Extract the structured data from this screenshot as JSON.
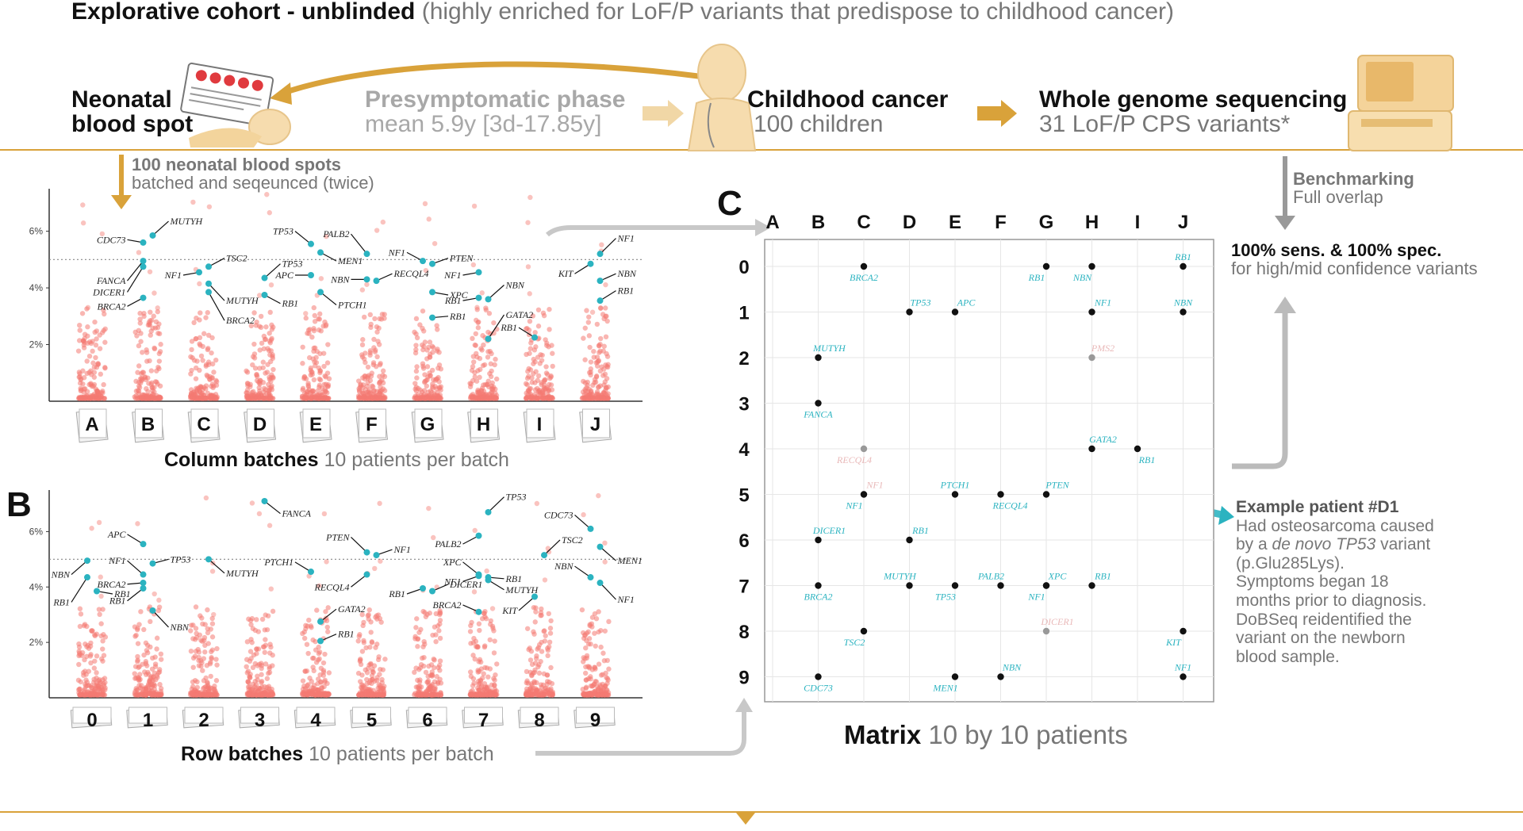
{
  "header": {
    "title_bold": "Explorative cohort - unblinded",
    "title_rest": "(highly enriched for LoF/P variants that predispose to childhood cancer)"
  },
  "stages": {
    "neonatal": {
      "line1": "Neonatal",
      "line2": "blood spot"
    },
    "presymptomatic": {
      "title": "Presymptomatic phase",
      "sub": "mean 5.9y [3d-17.85y]"
    },
    "childhood": {
      "title": "Childhood cancer",
      "sub": "100 children"
    },
    "wgs": {
      "title": "Whole genome sequencing",
      "sub": "31 LoF/P CPS variants*"
    }
  },
  "batching_note": {
    "line1": "100 neonatal blood spots",
    "line2": "batched and seqeunced (twice)"
  },
  "benchmark_note": {
    "line1": "Benchmarking",
    "line2": "Full overlap"
  },
  "result": {
    "line1": "100% sens. & 100% spec.",
    "line2": "for high/mid confidence variants"
  },
  "panels": {
    "b": "B",
    "c": "C"
  },
  "column_batches": {
    "label_bold": "Column batches",
    "label_rest": "10 patients per batch"
  },
  "row_batches": {
    "label_bold": "Row batches",
    "label_rest": "10 patients per batch"
  },
  "matrix": {
    "label_bold": "Matrix",
    "label_rest": "10 by 10 patients"
  },
  "example": {
    "title": "Example patient #D1",
    "lines": [
      "Had osteosarcoma caused",
      "by a ",
      "de novo TP53",
      " variant",
      "(p.Glu285Lys).",
      "Symptoms began 18",
      "months prior to diagnosis.",
      "DoBSeq reidentified the",
      "variant on the newborn",
      "blood sample."
    ]
  },
  "colors": {
    "teal": "#2bb3c0",
    "salmon": "#f47a72",
    "gold": "#d9a23a",
    "black": "#111111"
  },
  "chart_data": [
    {
      "type": "scatter",
      "title": "Column batches",
      "categories": [
        "A",
        "B",
        "C",
        "D",
        "E",
        "F",
        "G",
        "H",
        "I",
        "J"
      ],
      "yticks": [
        "2%",
        "4%",
        "6%"
      ],
      "ylim": [
        0,
        7.5
      ],
      "threshold": 5,
      "highlights": [
        {
          "batch": "B",
          "y": 5.6,
          "gene": "CDC73",
          "side": "left",
          "dy": 0.1
        },
        {
          "batch": "B",
          "y": 5.85,
          "gene": "MUTYH",
          "side": "right",
          "dy": 0.5
        },
        {
          "batch": "B",
          "y": 4.95,
          "gene": "FANCA",
          "side": "left",
          "dy": -0.7
        },
        {
          "batch": "B",
          "y": 4.75,
          "gene": "DICER1",
          "side": "left",
          "dy": -0.9
        },
        {
          "batch": "B",
          "y": 3.65,
          "gene": "BRCA2",
          "side": "left",
          "dy": -0.3
        },
        {
          "batch": "C",
          "y": 4.75,
          "gene": "TSC2",
          "side": "right",
          "dy": 0.3
        },
        {
          "batch": "C",
          "y": 4.55,
          "gene": "NF1",
          "side": "left",
          "dy": -0.1
        },
        {
          "batch": "C",
          "y": 4.15,
          "gene": "MUTYH",
          "side": "right",
          "dy": -0.6
        },
        {
          "batch": "C",
          "y": 3.85,
          "gene": "BRCA2",
          "side": "right",
          "dy": -1.0
        },
        {
          "batch": "D",
          "y": 4.35,
          "gene": "TP53",
          "side": "right",
          "dy": 0.5
        },
        {
          "batch": "D",
          "y": 3.75,
          "gene": "RB1",
          "side": "right",
          "dy": -0.3
        },
        {
          "batch": "E",
          "y": 5.55,
          "gene": "TP53",
          "side": "left",
          "dy": 0.45
        },
        {
          "batch": "E",
          "y": 5.25,
          "gene": "MEN1",
          "side": "right",
          "dy": -0.3
        },
        {
          "batch": "E",
          "y": 4.45,
          "gene": "APC",
          "side": "left",
          "dy": 0.0
        },
        {
          "batch": "E",
          "y": 3.85,
          "gene": "PTCH1",
          "side": "right",
          "dy": -0.45
        },
        {
          "batch": "F",
          "y": 5.2,
          "gene": "PALB2",
          "side": "left",
          "dy": 0.7
        },
        {
          "batch": "F",
          "y": 4.3,
          "gene": "NBN",
          "side": "left",
          "dy": 0.0
        },
        {
          "batch": "F",
          "y": 4.25,
          "gene": "RECQL4",
          "side": "right",
          "dy": 0.25
        },
        {
          "batch": "G",
          "y": 4.95,
          "gene": "NF1",
          "side": "left",
          "dy": 0.3
        },
        {
          "batch": "G",
          "y": 4.85,
          "gene": "PTEN",
          "side": "right",
          "dy": 0.2
        },
        {
          "batch": "G",
          "y": 3.85,
          "gene": "XPC",
          "side": "right",
          "dy": -0.1
        },
        {
          "batch": "G",
          "y": 2.95,
          "gene": "RB1",
          "side": "right",
          "dy": 0.05
        },
        {
          "batch": "H",
          "y": 4.55,
          "gene": "NF1",
          "side": "left",
          "dy": -0.1
        },
        {
          "batch": "H",
          "y": 3.65,
          "gene": "RB1",
          "side": "left",
          "dy": -0.1
        },
        {
          "batch": "H",
          "y": 3.6,
          "gene": "NBN",
          "side": "right",
          "dy": 0.5
        },
        {
          "batch": "H",
          "y": 2.2,
          "gene": "GATA2",
          "side": "right",
          "dy": 0.85
        },
        {
          "batch": "I",
          "y": 2.25,
          "gene": "RB1",
          "side": "left",
          "dy": 0.35
        },
        {
          "batch": "J",
          "y": 5.2,
          "gene": "NF1",
          "side": "right",
          "dy": 0.55
        },
        {
          "batch": "J",
          "y": 4.85,
          "gene": "KIT",
          "side": "left",
          "dy": -0.35
        },
        {
          "batch": "J",
          "y": 4.25,
          "gene": "NBN",
          "side": "right",
          "dy": 0.25
        },
        {
          "batch": "J",
          "y": 3.55,
          "gene": "RB1",
          "side": "right",
          "dy": 0.35
        }
      ]
    },
    {
      "type": "scatter",
      "title": "Row batches",
      "categories": [
        "0",
        "1",
        "2",
        "3",
        "4",
        "5",
        "6",
        "7",
        "8",
        "9"
      ],
      "yticks": [
        "2%",
        "4%",
        "6%"
      ],
      "ylim": [
        0,
        7.5
      ],
      "threshold": 5,
      "highlights": [
        {
          "batch": "0",
          "y": 4.95,
          "gene": "NBN",
          "side": "left",
          "dy": -0.5
        },
        {
          "batch": "0",
          "y": 4.35,
          "gene": "RB1",
          "side": "left",
          "dy": -0.9
        },
        {
          "batch": "0",
          "y": 3.85,
          "gene": "RB1",
          "side": "right",
          "dy": -0.1
        },
        {
          "batch": "1",
          "y": 5.55,
          "gene": "APC",
          "side": "left",
          "dy": 0.35
        },
        {
          "batch": "1",
          "y": 4.85,
          "gene": "TP53",
          "side": "right",
          "dy": 0.15
        },
        {
          "batch": "1",
          "y": 4.45,
          "gene": "NF1",
          "side": "left",
          "dy": 0.5
        },
        {
          "batch": "1",
          "y": 4.15,
          "gene": "BRCA2",
          "side": "left",
          "dy": -0.05
        },
        {
          "batch": "1",
          "y": 3.95,
          "gene": "RB1",
          "side": "left",
          "dy": -0.45
        },
        {
          "batch": "1",
          "y": 3.15,
          "gene": "NBN",
          "side": "right",
          "dy": -0.6
        },
        {
          "batch": "2",
          "y": 5.0,
          "gene": "MUTYH",
          "side": "right",
          "dy": -0.5
        },
        {
          "batch": "3",
          "y": 7.1,
          "gene": "FANCA",
          "side": "right",
          "dy": -0.45
        },
        {
          "batch": "4",
          "y": 4.55,
          "gene": "PTCH1",
          "side": "left",
          "dy": 0.35
        },
        {
          "batch": "4",
          "y": 2.75,
          "gene": "GATA2",
          "side": "right",
          "dy": 0.45
        },
        {
          "batch": "4",
          "y": 2.05,
          "gene": "RB1",
          "side": "right",
          "dy": 0.25
        },
        {
          "batch": "5",
          "y": 5.25,
          "gene": "PTEN",
          "side": "left",
          "dy": 0.55
        },
        {
          "batch": "5",
          "y": 5.15,
          "gene": "NF1",
          "side": "right",
          "dy": 0.2
        },
        {
          "batch": "5",
          "y": 4.45,
          "gene": "RECQL4",
          "side": "left",
          "dy": -0.45
        },
        {
          "batch": "6",
          "y": 3.95,
          "gene": "RB1",
          "side": "left",
          "dy": -0.2
        },
        {
          "batch": "6",
          "y": 3.85,
          "gene": "DICER1",
          "side": "right",
          "dy": 0.25
        },
        {
          "batch": "7",
          "y": 6.7,
          "gene": "TP53",
          "side": "right",
          "dy": 0.55
        },
        {
          "batch": "7",
          "y": 5.85,
          "gene": "PALB2",
          "side": "left",
          "dy": -0.3
        },
        {
          "batch": "7",
          "y": 4.45,
          "gene": "XPC",
          "side": "left",
          "dy": 0.45
        },
        {
          "batch": "7",
          "y": 4.4,
          "gene": "NF1",
          "side": "left",
          "dy": -0.2
        },
        {
          "batch": "7",
          "y": 4.35,
          "gene": "RB1",
          "side": "right",
          "dy": -0.05
        },
        {
          "batch": "7",
          "y": 4.25,
          "gene": "MUTYH",
          "side": "right",
          "dy": -0.35
        },
        {
          "batch": "7",
          "y": 3.1,
          "gene": "BRCA2",
          "side": "left",
          "dy": 0.25
        },
        {
          "batch": "8",
          "y": 5.15,
          "gene": "TSC2",
          "side": "right",
          "dy": 0.55
        },
        {
          "batch": "8",
          "y": 3.65,
          "gene": "KIT",
          "side": "left",
          "dy": -0.5
        },
        {
          "batch": "9",
          "y": 6.1,
          "gene": "CDC73",
          "side": "left",
          "dy": 0.5
        },
        {
          "batch": "9",
          "y": 5.45,
          "gene": "MEN1",
          "side": "right",
          "dy": -0.5
        },
        {
          "batch": "9",
          "y": 4.35,
          "gene": "NBN",
          "side": "left",
          "dy": 0.4
        },
        {
          "batch": "9",
          "y": 4.15,
          "gene": "NF1",
          "side": "right",
          "dy": -0.6
        }
      ]
    },
    {
      "type": "matrix",
      "title": "Matrix",
      "columns": [
        "A",
        "B",
        "C",
        "D",
        "E",
        "F",
        "G",
        "H",
        "I",
        "J"
      ],
      "rows": [
        "0",
        "1",
        "2",
        "3",
        "4",
        "5",
        "6",
        "7",
        "8",
        "9"
      ],
      "points": [
        {
          "col": "C",
          "row": "0",
          "gene": "BRCA2",
          "pos": "below",
          "faded": false
        },
        {
          "col": "G",
          "row": "0",
          "gene": "RB1",
          "pos": "below-left",
          "faded": false
        },
        {
          "col": "H",
          "row": "0",
          "gene": "NBN",
          "pos": "below-left",
          "faded": false
        },
        {
          "col": "J",
          "row": "0",
          "gene": "RB1",
          "pos": "above",
          "faded": false
        },
        {
          "col": "D",
          "row": "1",
          "gene": "TP53",
          "pos": "above-right",
          "faded": false
        },
        {
          "col": "E",
          "row": "1",
          "gene": "APC",
          "pos": "above-right",
          "faded": false
        },
        {
          "col": "H",
          "row": "1",
          "gene": "NF1",
          "pos": "above-right",
          "faded": false
        },
        {
          "col": "J",
          "row": "1",
          "gene": "NBN",
          "pos": "above",
          "faded": false
        },
        {
          "col": "B",
          "row": "2",
          "gene": "MUTYH",
          "pos": "above-right",
          "faded": false
        },
        {
          "col": "H",
          "row": "2",
          "gene": "PMS2",
          "pos": "above-right",
          "faded": true
        },
        {
          "col": "B",
          "row": "3",
          "gene": "FANCA",
          "pos": "below",
          "faded": false
        },
        {
          "col": "C",
          "row": "4",
          "gene": "RECQL4",
          "pos": "below-left",
          "faded": true
        },
        {
          "col": "H",
          "row": "4",
          "gene": "GATA2",
          "pos": "above-right",
          "faded": false
        },
        {
          "col": "I",
          "row": "4",
          "gene": "RB1",
          "pos": "below-right",
          "faded": false
        },
        {
          "col": "C",
          "row": "5",
          "gene": "NF1",
          "pos": "above-right",
          "faded": true
        },
        {
          "col": "C",
          "row": "5",
          "gene": "NF1",
          "pos": "below-left",
          "faded": false
        },
        {
          "col": "E",
          "row": "5",
          "gene": "PTCH1",
          "pos": "above",
          "faded": false
        },
        {
          "col": "F",
          "row": "5",
          "gene": "RECQL4",
          "pos": "below-right",
          "faded": false
        },
        {
          "col": "G",
          "row": "5",
          "gene": "PTEN",
          "pos": "above-right",
          "faded": false
        },
        {
          "col": "B",
          "row": "6",
          "gene": "DICER1",
          "pos": "above-right",
          "faded": false
        },
        {
          "col": "D",
          "row": "6",
          "gene": "RB1",
          "pos": "above-right",
          "faded": false
        },
        {
          "col": "B",
          "row": "7",
          "gene": "BRCA2",
          "pos": "below",
          "faded": false
        },
        {
          "col": "D",
          "row": "7",
          "gene": "MUTYH",
          "pos": "above-left",
          "faded": false
        },
        {
          "col": "E",
          "row": "7",
          "gene": "TP53",
          "pos": "below-left",
          "faded": false
        },
        {
          "col": "F",
          "row": "7",
          "gene": "PALB2",
          "pos": "above-left",
          "faded": false
        },
        {
          "col": "G",
          "row": "7",
          "gene": "XPC",
          "pos": "above-right",
          "faded": false
        },
        {
          "col": "G",
          "row": "7",
          "gene": "NF1",
          "pos": "below-left",
          "faded": false
        },
        {
          "col": "H",
          "row": "7",
          "gene": "RB1",
          "pos": "above-right",
          "faded": false
        },
        {
          "col": "C",
          "row": "8",
          "gene": "TSC2",
          "pos": "below-left",
          "faded": false
        },
        {
          "col": "G",
          "row": "8",
          "gene": "DICER1",
          "pos": "above-right",
          "faded": true
        },
        {
          "col": "J",
          "row": "8",
          "gene": "KIT",
          "pos": "below-left",
          "faded": false
        },
        {
          "col": "B",
          "row": "9",
          "gene": "CDC73",
          "pos": "below",
          "faded": false
        },
        {
          "col": "E",
          "row": "9",
          "gene": "MEN1",
          "pos": "below-left",
          "faded": false
        },
        {
          "col": "F",
          "row": "9",
          "gene": "NBN",
          "pos": "above-right",
          "faded": false
        },
        {
          "col": "J",
          "row": "9",
          "gene": "NF1",
          "pos": "above",
          "faded": false
        }
      ]
    }
  ]
}
